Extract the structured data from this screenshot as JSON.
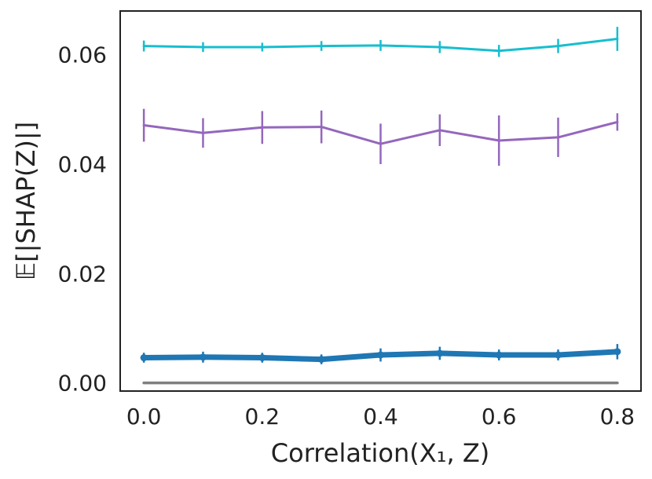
{
  "chart_data": {
    "type": "line",
    "title": "",
    "xlabel": "Correlation(X₁, Z)",
    "ylabel": "𝔼[|SHAP(Z)|]",
    "x": [
      0.0,
      0.1,
      0.2,
      0.3,
      0.4,
      0.5,
      0.6,
      0.7,
      0.8
    ],
    "xlim": [
      -0.04,
      0.84
    ],
    "ylim": [
      -0.0015,
      0.068
    ],
    "xticks": [
      0.0,
      0.2,
      0.4,
      0.6,
      0.8
    ],
    "xtick_labels": [
      "0.0",
      "0.2",
      "0.4",
      "0.6",
      "0.8"
    ],
    "yticks": [
      0.0,
      0.02,
      0.04,
      0.06
    ],
    "ytick_labels": [
      "0.00",
      "0.02",
      "0.04",
      "0.06"
    ],
    "grid": false,
    "legend": "none",
    "series": [
      {
        "name": "cyan",
        "color": "#17becf",
        "values": [
          0.0616,
          0.0614,
          0.0614,
          0.0616,
          0.0617,
          0.0614,
          0.0607,
          0.0616,
          0.0629
        ],
        "errors": [
          0.001,
          0.0009,
          0.0008,
          0.0009,
          0.001,
          0.0011,
          0.0011,
          0.0013,
          0.0022
        ]
      },
      {
        "name": "purple",
        "color": "#9467bd",
        "values": [
          0.0471,
          0.0457,
          0.0467,
          0.0468,
          0.0437,
          0.0462,
          0.0443,
          0.0449,
          0.0477
        ],
        "errors": [
          0.003,
          0.0027,
          0.003,
          0.003,
          0.0037,
          0.0029,
          0.0046,
          0.0036,
          0.0016
        ]
      },
      {
        "name": "blue",
        "color": "#1f77b4",
        "values": [
          0.0046,
          0.0047,
          0.0046,
          0.0043,
          0.0051,
          0.0054,
          0.0051,
          0.0051,
          0.0057
        ],
        "errors": [
          0.0009,
          0.001,
          0.0009,
          0.0009,
          0.0012,
          0.0012,
          0.001,
          0.001,
          0.0014
        ]
      },
      {
        "name": "gray",
        "color": "#7f7f7f",
        "values": [
          0.0,
          0.0,
          0.0,
          0.0,
          0.0,
          0.0,
          0.0,
          0.0,
          0.0
        ],
        "errors": []
      }
    ]
  }
}
